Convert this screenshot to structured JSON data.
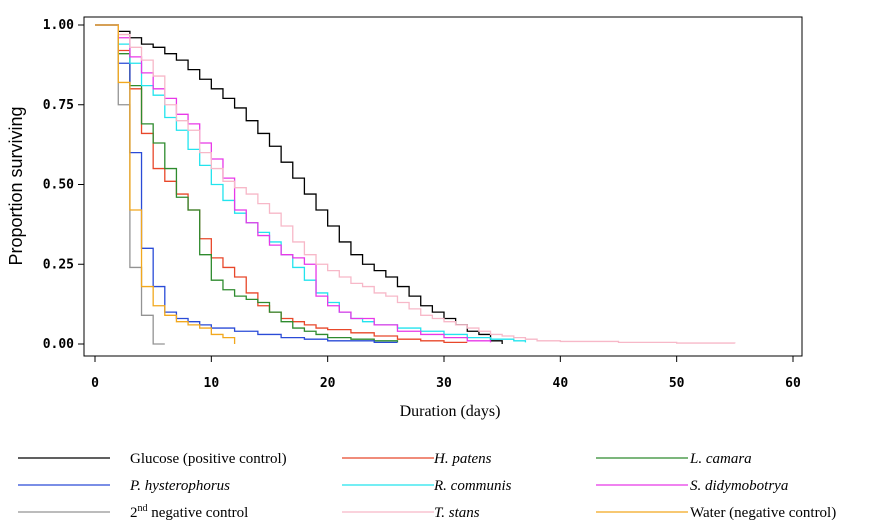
{
  "chart_data": {
    "type": "line",
    "step": true,
    "title": "",
    "xlabel": "Duration (days)",
    "ylabel": "Proportion surviving",
    "xlim": [
      0,
      60
    ],
    "ylim": [
      0,
      1
    ],
    "x_ticks": [
      0,
      10,
      20,
      30,
      40,
      50,
      60
    ],
    "x_tick_labels": [
      "0",
      "10",
      "20",
      "30",
      "40",
      "50",
      "60"
    ],
    "y_ticks": [
      0,
      0.25,
      0.5,
      0.75,
      1
    ],
    "y_tick_labels": [
      "0.00",
      "0.25",
      "0.50",
      "0.75",
      "1.00"
    ],
    "grid": false,
    "legend_position": "bottom",
    "series": [
      {
        "name": "Glucose (positive control)",
        "color": "#000000",
        "x": [
          0,
          2,
          3,
          4,
          5,
          6,
          7,
          8,
          9,
          10,
          11,
          12,
          13,
          14,
          15,
          16,
          17,
          18,
          19,
          20,
          21,
          22,
          23,
          24,
          25,
          26,
          27,
          28,
          29,
          30,
          31,
          32,
          33,
          34,
          35
        ],
        "y": [
          1.0,
          0.98,
          0.96,
          0.94,
          0.93,
          0.91,
          0.89,
          0.86,
          0.83,
          0.8,
          0.77,
          0.74,
          0.7,
          0.66,
          0.62,
          0.57,
          0.52,
          0.47,
          0.42,
          0.37,
          0.32,
          0.28,
          0.25,
          0.23,
          0.21,
          0.18,
          0.15,
          0.12,
          0.1,
          0.08,
          0.06,
          0.04,
          0.03,
          0.01,
          0.0
        ]
      },
      {
        "name": "H. patens",
        "italic": true,
        "color": "#e8472a",
        "x": [
          0,
          2,
          3,
          4,
          5,
          6,
          7,
          8,
          9,
          10,
          11,
          12,
          13,
          14,
          15,
          16,
          17,
          18,
          19,
          20,
          22,
          24,
          26,
          28,
          30,
          32
        ],
        "y": [
          1.0,
          0.92,
          0.8,
          0.66,
          0.55,
          0.51,
          0.47,
          0.42,
          0.33,
          0.27,
          0.24,
          0.21,
          0.16,
          0.12,
          0.1,
          0.08,
          0.07,
          0.06,
          0.05,
          0.045,
          0.035,
          0.025,
          0.015,
          0.01,
          0.005,
          0.005
        ]
      },
      {
        "name": "L. camara",
        "italic": true,
        "color": "#2e8b2e",
        "x": [
          0,
          2,
          3,
          4,
          5,
          6,
          7,
          8,
          9,
          10,
          11,
          12,
          13,
          14,
          15,
          16,
          17,
          18,
          19,
          20,
          22,
          24,
          26
        ],
        "y": [
          1.0,
          0.91,
          0.81,
          0.69,
          0.63,
          0.55,
          0.46,
          0.42,
          0.28,
          0.2,
          0.17,
          0.15,
          0.14,
          0.13,
          0.1,
          0.07,
          0.05,
          0.04,
          0.03,
          0.02,
          0.015,
          0.01,
          0.005
        ]
      },
      {
        "name": "P. hysterophorus",
        "italic": true,
        "color": "#2a4bd7",
        "x": [
          0,
          2,
          3,
          4,
          5,
          6,
          7,
          8,
          9,
          10,
          12,
          14,
          16,
          18,
          20,
          22,
          24,
          26
        ],
        "y": [
          1.0,
          0.88,
          0.6,
          0.3,
          0.18,
          0.1,
          0.08,
          0.07,
          0.06,
          0.05,
          0.04,
          0.03,
          0.02,
          0.015,
          0.01,
          0.01,
          0.005,
          0.005
        ]
      },
      {
        "name": "R. communis",
        "italic": true,
        "color": "#22e4ee",
        "x": [
          0,
          2,
          3,
          4,
          5,
          6,
          7,
          8,
          9,
          10,
          11,
          12,
          13,
          14,
          15,
          16,
          17,
          18,
          19,
          20,
          21,
          22,
          23,
          24,
          26,
          28,
          30,
          32,
          34,
          36,
          37
        ],
        "y": [
          1.0,
          0.94,
          0.88,
          0.81,
          0.78,
          0.71,
          0.67,
          0.61,
          0.56,
          0.5,
          0.45,
          0.41,
          0.38,
          0.35,
          0.32,
          0.28,
          0.24,
          0.2,
          0.16,
          0.13,
          0.1,
          0.08,
          0.07,
          0.06,
          0.05,
          0.04,
          0.03,
          0.02,
          0.015,
          0.01,
          0.005
        ]
      },
      {
        "name": "S. didymobotrya",
        "italic": true,
        "color": "#e838e8",
        "x": [
          0,
          2,
          3,
          4,
          5,
          6,
          7,
          8,
          9,
          10,
          11,
          12,
          13,
          14,
          15,
          16,
          17,
          18,
          19,
          20,
          21,
          22,
          24,
          26,
          28,
          30,
          32,
          34
        ],
        "y": [
          1.0,
          0.96,
          0.9,
          0.85,
          0.8,
          0.77,
          0.72,
          0.69,
          0.63,
          0.58,
          0.52,
          0.42,
          0.38,
          0.34,
          0.31,
          0.28,
          0.27,
          0.25,
          0.15,
          0.12,
          0.1,
          0.08,
          0.06,
          0.04,
          0.03,
          0.02,
          0.01,
          0.005
        ]
      },
      {
        "name": "2nd negative control",
        "color": "#939393",
        "x": [
          0,
          2,
          3,
          4,
          5,
          6
        ],
        "y": [
          1.0,
          0.75,
          0.24,
          0.09,
          0.0,
          0.0
        ]
      },
      {
        "name": "T. stans",
        "italic": true,
        "color": "#f7b8c8",
        "x": [
          0,
          2,
          3,
          4,
          5,
          6,
          7,
          8,
          9,
          10,
          11,
          12,
          13,
          14,
          15,
          16,
          17,
          18,
          19,
          20,
          21,
          22,
          23,
          24,
          25,
          26,
          27,
          28,
          29,
          30,
          31,
          32,
          33,
          34,
          35,
          36,
          37,
          38,
          40,
          45,
          50,
          55
        ],
        "y": [
          1.0,
          0.97,
          0.93,
          0.89,
          0.84,
          0.75,
          0.7,
          0.67,
          0.6,
          0.55,
          0.51,
          0.49,
          0.47,
          0.44,
          0.41,
          0.37,
          0.32,
          0.28,
          0.25,
          0.23,
          0.21,
          0.19,
          0.18,
          0.16,
          0.15,
          0.13,
          0.11,
          0.09,
          0.08,
          0.07,
          0.06,
          0.05,
          0.04,
          0.03,
          0.025,
          0.02,
          0.015,
          0.01,
          0.008,
          0.005,
          0.003,
          0.002
        ]
      },
      {
        "name": "Water (negative control)",
        "color": "#f2a81d",
        "x": [
          0,
          2,
          3,
          4,
          5,
          6,
          7,
          8,
          9,
          10,
          11,
          12
        ],
        "y": [
          1.0,
          0.82,
          0.42,
          0.18,
          0.12,
          0.09,
          0.07,
          0.06,
          0.05,
          0.03,
          0.02,
          0.0
        ]
      }
    ]
  }
}
